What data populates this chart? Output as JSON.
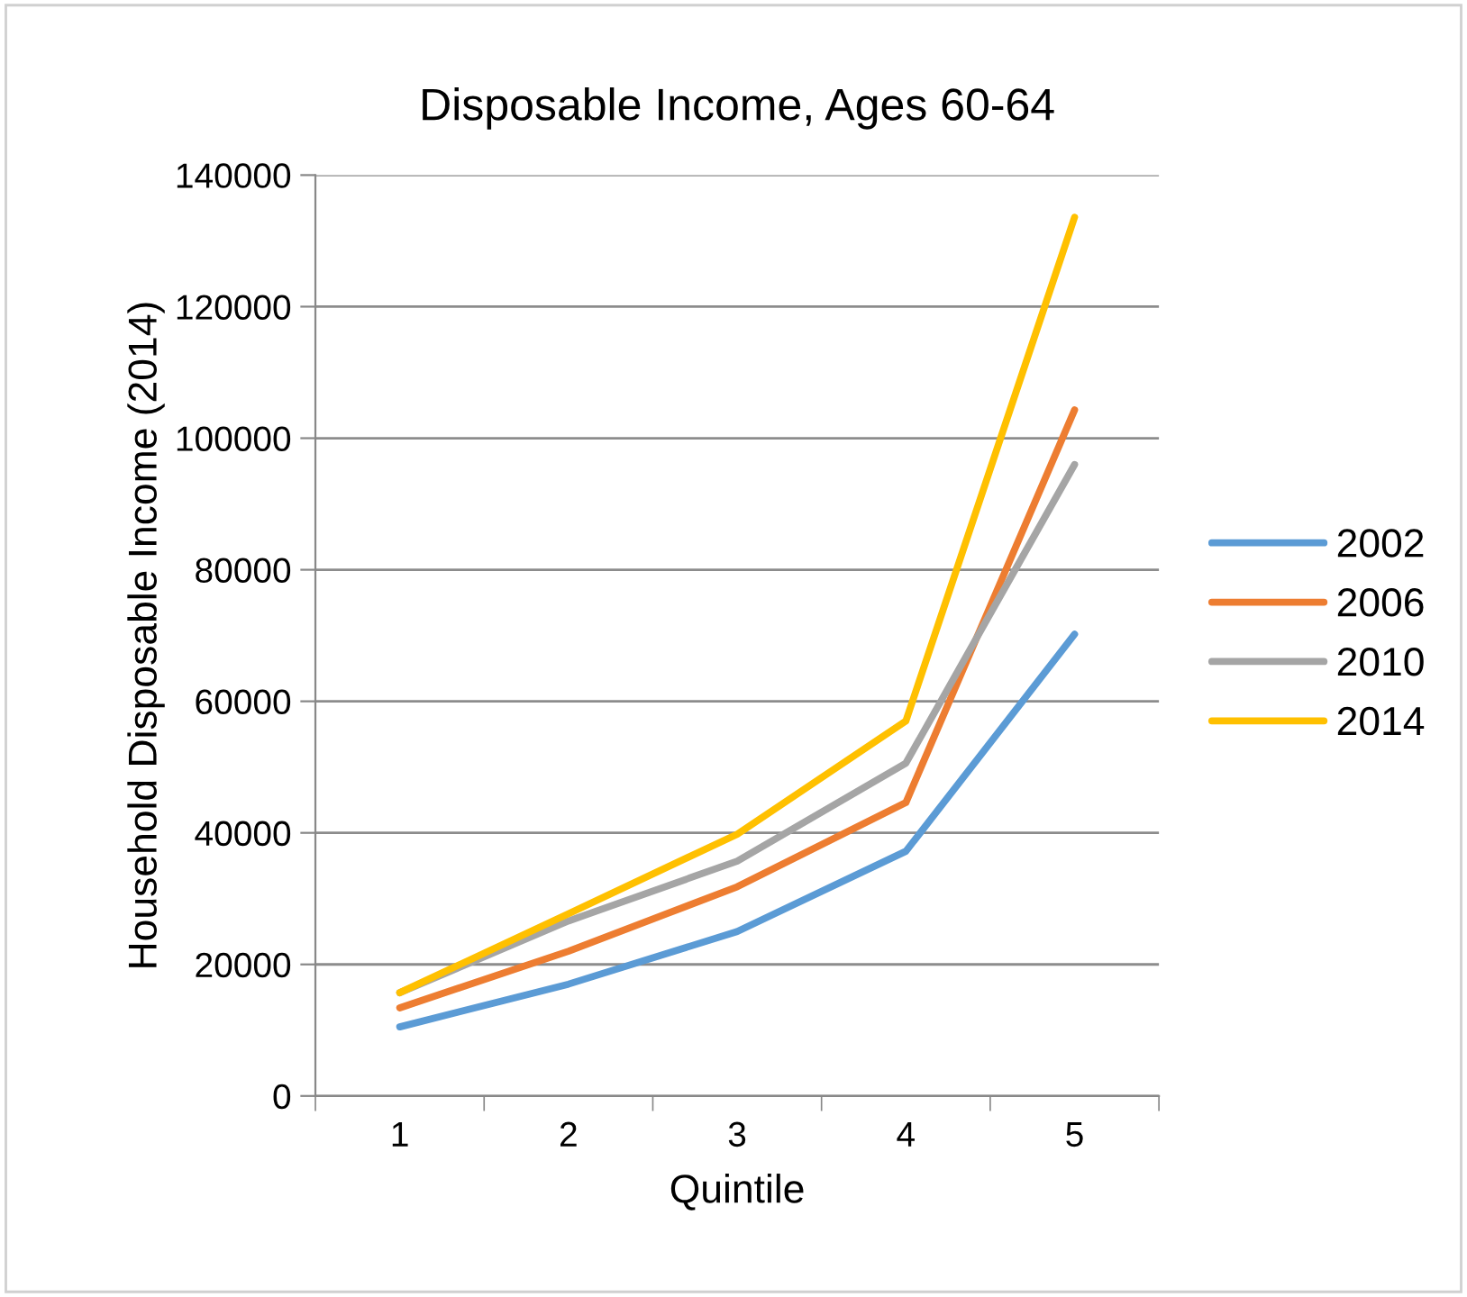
{
  "chart_data": {
    "type": "line",
    "title": "Disposable Income, Ages 60-64",
    "xlabel": "Quintile",
    "ylabel": "Household Disposable Income (2014)",
    "categories": [
      "1",
      "2",
      "3",
      "4",
      "5"
    ],
    "series": [
      {
        "name": "2002",
        "color": "#5b9bd5",
        "values": [
          10500,
          17000,
          25000,
          37200,
          70200
        ]
      },
      {
        "name": "2006",
        "color": "#ed7d31",
        "values": [
          13400,
          22000,
          31800,
          44600,
          104300
        ]
      },
      {
        "name": "2010",
        "color": "#a5a5a5",
        "values": [
          15700,
          26600,
          35700,
          50600,
          96000
        ]
      },
      {
        "name": "2014",
        "color": "#ffc000",
        "values": [
          15700,
          27700,
          39800,
          57000,
          133600
        ]
      }
    ],
    "ylim": [
      0,
      140000
    ],
    "yticks": [
      0,
      20000,
      40000,
      60000,
      80000,
      100000,
      120000,
      140000
    ],
    "grid": "y",
    "legend": "right",
    "marker": "none",
    "line_style": "solid"
  }
}
